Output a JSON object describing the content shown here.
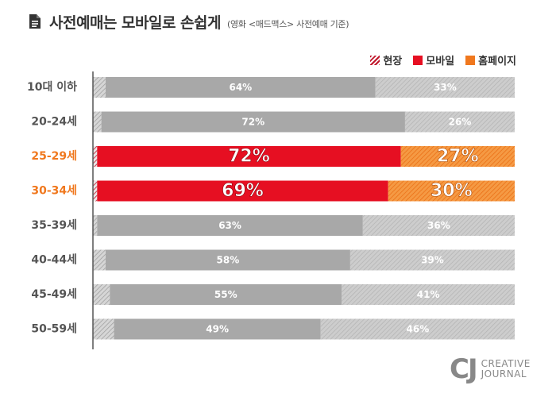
{
  "title": "사전예매는 모바일로 손쉽게",
  "subtitle": "(영화 <매드맥스> 사전예매 기준)",
  "logo": {
    "mark": "CJ",
    "line1": "CREATIVE",
    "line2": "JOURNAL"
  },
  "icons": {
    "title": "document-icon"
  },
  "chart_data": {
    "type": "bar",
    "orientation": "horizontal",
    "stacked": true,
    "title": "사전예매는 모바일로 손쉽게",
    "subtitle": "(영화 <매드맥스> 사전예매 기준)",
    "categories": [
      "10대 이하",
      "20-24세",
      "25-29세",
      "30-34세",
      "35-39세",
      "40-44세",
      "45-49세",
      "50-59세"
    ],
    "highlighted_categories": [
      "25-29세",
      "30-34세"
    ],
    "series": [
      {
        "name": "현장",
        "values": [
          3,
          2,
          1,
          1,
          1,
          3,
          4,
          5
        ]
      },
      {
        "name": "모바일",
        "values": [
          64,
          72,
          72,
          69,
          63,
          58,
          55,
          49
        ]
      },
      {
        "name": "홈페이지",
        "values": [
          33,
          26,
          27,
          30,
          36,
          39,
          41,
          46
        ]
      }
    ],
    "value_labels": {
      "모바일": [
        "64%",
        "72%",
        "72%",
        "69%",
        "63%",
        "58%",
        "55%",
        "49%"
      ],
      "홈페이지": [
        "33%",
        "26%",
        "27%",
        "30%",
        "36%",
        "39%",
        "41%",
        "46%"
      ]
    },
    "xlim": [
      0,
      100
    ],
    "legend_position": "top-right",
    "grid": false,
    "colors": {
      "현장": "#b0b0b0",
      "모바일": "#a8a8a8",
      "홈페이지": "#c4c4c4",
      "모바일_highlight": "#e60f22",
      "홈페이지_highlight": "#f0781e",
      "category_label": "#555555",
      "category_label_highlight": "#f0781e",
      "legend_현장": "#c0152a",
      "legend_모바일": "#e60f22",
      "legend_홈페이지": "#f0781e"
    }
  }
}
